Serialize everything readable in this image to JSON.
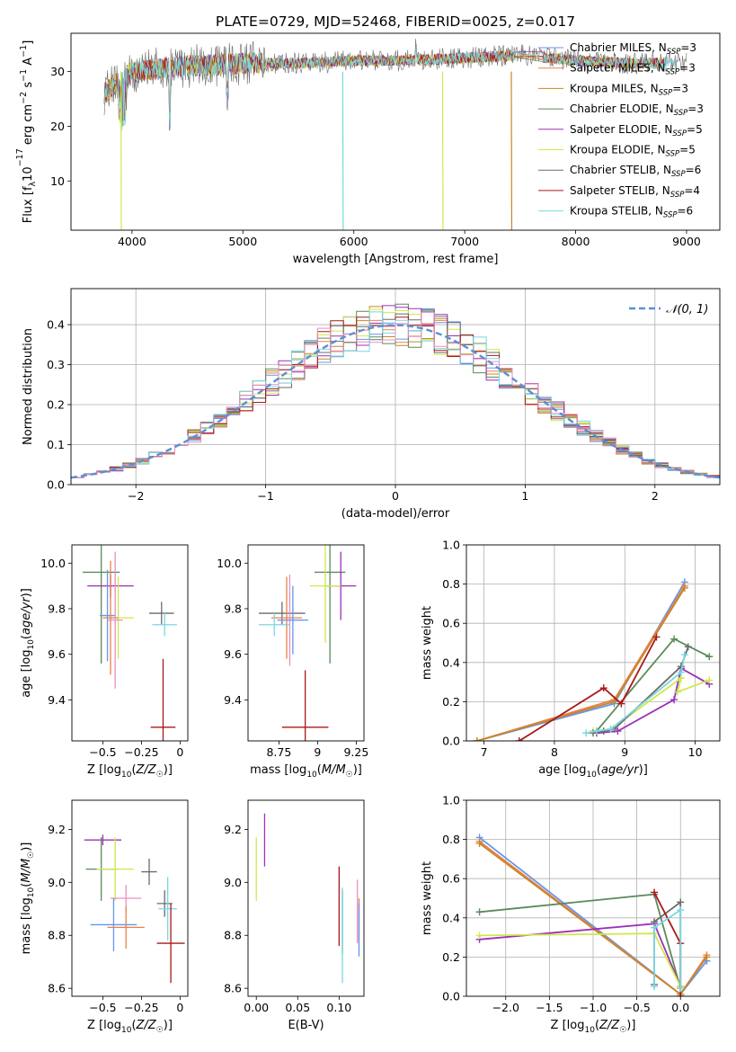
{
  "title": "PLATE=0729, MJD=52468, FIBERID=0025, z=0.017",
  "colors": {
    "chabrier_miles": "#6495ed",
    "salpeter_miles": "#e8824a",
    "kroupa_miles": "#c9862a",
    "chabrier_elodie": "#5c8a5c",
    "salpeter_elodie": "#9b30b8",
    "kroupa_elodie": "#cfe84a",
    "chabrier_stelib": "#6b6b6b",
    "salpeter_stelib": "#a81818",
    "kroupa_stelib": "#79d7e3",
    "pink": "#e98fc0",
    "gaussian": "#5b8fd4"
  },
  "legend": [
    {
      "base": "Chabrier MILES, N",
      "sub": "SSP",
      "tail": "=3",
      "color": "#6495ed"
    },
    {
      "base": "Salpeter MILES, N",
      "sub": "SSP",
      "tail": "=3",
      "color": "#e8824a"
    },
    {
      "base": "Kroupa MILES, N",
      "sub": "SSP",
      "tail": "=3",
      "color": "#c9862a"
    },
    {
      "base": "Chabrier ELODIE, N",
      "sub": "SSP",
      "tail": "=3",
      "color": "#5c8a5c"
    },
    {
      "base": "Salpeter ELODIE, N",
      "sub": "SSP",
      "tail": "=5",
      "color": "#9b30b8"
    },
    {
      "base": "Kroupa ELODIE, N",
      "sub": "SSP",
      "tail": "=5",
      "color": "#cfe84a"
    },
    {
      "base": "Chabrier STELIB, N",
      "sub": "SSP",
      "tail": "=6",
      "color": "#6b6b6b"
    },
    {
      "base": "Salpeter STELIB, N",
      "sub": "SSP",
      "tail": "=4",
      "color": "#a81818"
    },
    {
      "base": "Kroupa STELIB, N",
      "sub": "SSP",
      "tail": "=6",
      "color": "#79d7e3"
    }
  ],
  "chart_data": [
    {
      "type": "line",
      "name": "spectrum",
      "xlabel": "wavelength [Angstrom, rest frame]",
      "ylabel": "Flux [f_λ 10^-17 erg cm^-2 s^-1 A^-1]",
      "xlim": [
        3450,
        9300
      ],
      "ylim": [
        1,
        37
      ],
      "xticks": [
        4000,
        5000,
        6000,
        7000,
        8000,
        9000
      ],
      "yticks": [
        10,
        20,
        30
      ],
      "grid": false,
      "legend_position": "top-right",
      "envelope": {
        "x": [
          3750,
          4000,
          4500,
          5000,
          5500,
          6000,
          6500,
          7000,
          7500,
          8000,
          8500,
          9000
        ],
        "y": [
          26,
          30,
          31,
          31.5,
          31.5,
          32,
          32,
          32.5,
          33,
          32,
          31.5,
          31.5
        ]
      },
      "dropouts": [
        {
          "x": 3900,
          "y": 1,
          "series": "Kroupa ELODIE"
        },
        {
          "x": 5900,
          "y": 1,
          "series": "Kroupa STELIB"
        },
        {
          "x": 6800,
          "y": 1,
          "series": "Kroupa ELODIE"
        },
        {
          "x": 7420,
          "y": 1,
          "series": "Kroupa MILES"
        }
      ]
    },
    {
      "type": "line",
      "name": "residual-histogram",
      "xlabel": "(data-model)/error",
      "ylabel": "Normed distribution",
      "xlim": [
        -2.5,
        2.5
      ],
      "ylim": [
        0,
        0.49
      ],
      "xticks": [
        -2,
        -1,
        0,
        1,
        2
      ],
      "yticks": [
        0.0,
        0.1,
        0.2,
        0.3,
        0.4
      ],
      "grid": true,
      "legend": [
        {
          "label": "N(0,1)",
          "style": "dashed"
        }
      ],
      "legend_position": "top-right",
      "bins": {
        "start": -2.5,
        "width": 0.1,
        "count": 50
      },
      "series_amplitude": 0.4
    },
    {
      "type": "scatter",
      "name": "age-vs-Z",
      "xlabel": "Z [log10(Z/Z☉)]",
      "ylabel": "age [log10(age/yr)]",
      "xlim": [
        -0.7,
        0.05
      ],
      "ylim": [
        9.22,
        10.08
      ],
      "xticks": [
        -0.5,
        -0.25,
        0.0
      ],
      "yticks": [
        9.4,
        9.6,
        9.8,
        10.0
      ],
      "points": [
        {
          "x": -0.51,
          "y": 9.96,
          "dx": 0.12,
          "dy": 0.4,
          "color": "#5c8a5c"
        },
        {
          "x": -0.45,
          "y": 9.9,
          "dx": 0.15,
          "dy": 0.05,
          "color": "#9b30b8"
        },
        {
          "x": -0.47,
          "y": 9.77,
          "dx": 0.05,
          "dy": 0.2,
          "color": "#6495ed"
        },
        {
          "x": -0.4,
          "y": 9.76,
          "dx": 0.1,
          "dy": 0.18,
          "color": "#cfe84a"
        },
        {
          "x": -0.45,
          "y": 9.76,
          "dx": 0.05,
          "dy": 0.25,
          "color": "#e8824a"
        },
        {
          "x": -0.42,
          "y": 9.75,
          "dx": 0.05,
          "dy": 0.3,
          "color": "#e98fc0"
        },
        {
          "x": -0.12,
          "y": 9.78,
          "dx": 0.08,
          "dy": 0.05,
          "color": "#6b6b6b"
        },
        {
          "x": -0.1,
          "y": 9.73,
          "dx": 0.08,
          "dy": 0.05,
          "color": "#79d7e3"
        },
        {
          "x": -0.11,
          "y": 9.28,
          "dx": 0.08,
          "dy": 0.3,
          "color": "#a81818"
        }
      ]
    },
    {
      "type": "scatter",
      "name": "age-vs-mass",
      "xlabel": "mass [log10(M/M☉)]",
      "ylabel": "",
      "xlim": [
        8.55,
        9.3
      ],
      "ylim": [
        9.22,
        10.08
      ],
      "xticks": [
        8.75,
        9.0,
        9.25
      ],
      "yticks": [
        9.4,
        9.6,
        9.8,
        10.0
      ],
      "points": [
        {
          "x": 9.08,
          "y": 9.96,
          "dx": 0.1,
          "dy": 0.4,
          "color": "#5c8a5c"
        },
        {
          "x": 9.15,
          "y": 9.9,
          "dx": 0.1,
          "dy": 0.15,
          "color": "#9b30b8"
        },
        {
          "x": 9.05,
          "y": 9.9,
          "dx": 0.1,
          "dy": 0.25,
          "color": "#cfe84a"
        },
        {
          "x": 8.77,
          "y": 9.78,
          "dx": 0.15,
          "dy": 0.05,
          "color": "#6b6b6b"
        },
        {
          "x": 8.8,
          "y": 9.76,
          "dx": 0.1,
          "dy": 0.18,
          "color": "#e8824a"
        },
        {
          "x": 8.82,
          "y": 9.75,
          "dx": 0.08,
          "dy": 0.2,
          "color": "#e98fc0"
        },
        {
          "x": 8.84,
          "y": 9.75,
          "dx": 0.1,
          "dy": 0.15,
          "color": "#6495ed"
        },
        {
          "x": 8.72,
          "y": 9.73,
          "dx": 0.1,
          "dy": 0.05,
          "color": "#79d7e3"
        },
        {
          "x": 8.92,
          "y": 9.28,
          "dx": 0.15,
          "dy": 0.25,
          "color": "#a81818"
        }
      ]
    },
    {
      "type": "line",
      "name": "mass-weight-vs-age",
      "xlabel": "age [log10(age/yr)]",
      "ylabel": "mass weight",
      "xlim": [
        6.75,
        10.35
      ],
      "ylim": [
        0,
        1
      ],
      "xticks": [
        7,
        8,
        9,
        10
      ],
      "yticks": [
        0.0,
        0.2,
        0.4,
        0.6,
        0.8,
        1.0
      ],
      "grid": true,
      "series": [
        {
          "x": [
            6.9,
            8.85,
            9.85
          ],
          "y": [
            0.0,
            0.19,
            0.81
          ],
          "color": "#6495ed"
        },
        {
          "x": [
            6.9,
            8.85,
            9.85
          ],
          "y": [
            0.0,
            0.21,
            0.79
          ],
          "color": "#e8824a"
        },
        {
          "x": [
            6.9,
            8.85,
            9.85
          ],
          "y": [
            0.0,
            0.2,
            0.78
          ],
          "color": "#c9862a"
        },
        {
          "x": [
            8.6,
            9.7,
            10.2
          ],
          "y": [
            0.05,
            0.52,
            0.43
          ],
          "color": "#5c8a5c"
        },
        {
          "x": [
            8.6,
            8.9,
            9.7,
            9.8,
            10.2
          ],
          "y": [
            0.04,
            0.05,
            0.21,
            0.37,
            0.29
          ],
          "color": "#9b30b8"
        },
        {
          "x": [
            8.55,
            8.8,
            9.8,
            9.75,
            10.2
          ],
          "y": [
            0.05,
            0.06,
            0.32,
            0.25,
            0.31
          ],
          "color": "#cfe84a"
        },
        {
          "x": [
            8.55,
            8.7,
            8.85,
            9.8,
            9.9
          ],
          "y": [
            0.04,
            0.05,
            0.06,
            0.38,
            0.48
          ],
          "color": "#6b6b6b"
        },
        {
          "x": [
            7.5,
            8.7,
            8.95,
            9.45
          ],
          "y": [
            0.0,
            0.27,
            0.19,
            0.53
          ],
          "color": "#a81818"
        },
        {
          "x": [
            8.45,
            8.6,
            8.8,
            9.8,
            9.85
          ],
          "y": [
            0.04,
            0.05,
            0.06,
            0.35,
            0.44
          ],
          "color": "#79d7e3"
        }
      ]
    },
    {
      "type": "scatter",
      "name": "mass-vs-Z",
      "xlabel": "Z [log10(Z/Z☉)]",
      "ylabel": "mass [log10(M/M☉)]",
      "xlim": [
        -0.7,
        0.05
      ],
      "ylim": [
        8.57,
        9.31
      ],
      "xticks": [
        -0.5,
        -0.25,
        0.0
      ],
      "yticks": [
        8.6,
        8.8,
        9.0,
        9.2
      ],
      "points": [
        {
          "x": -0.5,
          "y": 9.16,
          "dx": 0.12,
          "dy": 0.02,
          "color": "#9b30b8"
        },
        {
          "x": -0.51,
          "y": 9.05,
          "dx": 0.1,
          "dy": 0.12,
          "color": "#5c8a5c"
        },
        {
          "x": -0.42,
          "y": 9.05,
          "dx": 0.12,
          "dy": 0.12,
          "color": "#cfe84a"
        },
        {
          "x": -0.35,
          "y": 8.94,
          "dx": 0.1,
          "dy": 0.05,
          "color": "#e98fc0"
        },
        {
          "x": -0.2,
          "y": 9.04,
          "dx": 0.05,
          "dy": 0.05,
          "color": "#6b6b6b"
        },
        {
          "x": -0.43,
          "y": 8.84,
          "dx": 0.15,
          "dy": 0.1,
          "color": "#6495ed"
        },
        {
          "x": -0.35,
          "y": 8.83,
          "dx": 0.12,
          "dy": 0.08,
          "color": "#e8824a"
        },
        {
          "x": -0.1,
          "y": 8.92,
          "dx": 0.05,
          "dy": 0.05,
          "color": "#6b6b6b"
        },
        {
          "x": -0.08,
          "y": 8.9,
          "dx": 0.06,
          "dy": 0.12,
          "color": "#79d7e3"
        },
        {
          "x": -0.06,
          "y": 8.77,
          "dx": 0.09,
          "dy": 0.15,
          "color": "#a81818"
        }
      ]
    },
    {
      "type": "scatter",
      "name": "mass-vs-EBV",
      "xlabel": "E(B-V)",
      "ylabel": "",
      "xlim": [
        -0.01,
        0.13
      ],
      "ylim": [
        8.57,
        9.31
      ],
      "xticks": [
        0.0,
        0.05,
        0.1
      ],
      "yticks": [
        8.6,
        8.8,
        9.0,
        9.2
      ],
      "points": [
        {
          "x": 0.01,
          "y": 9.16,
          "dy": 0.1,
          "color": "#9b30b8"
        },
        {
          "x": 0.0,
          "y": 9.05,
          "dy": 0.12,
          "color": "#cfe84a"
        },
        {
          "x": 0.1,
          "y": 8.91,
          "dy": 0.15,
          "color": "#a81818"
        },
        {
          "x": 0.104,
          "y": 8.85,
          "dy": 0.12,
          "color": "#5c8a5c"
        },
        {
          "x": 0.104,
          "y": 8.8,
          "dy": 0.18,
          "color": "#79d7e3"
        },
        {
          "x": 0.122,
          "y": 8.89,
          "dy": 0.12,
          "color": "#e98fc0"
        },
        {
          "x": 0.124,
          "y": 8.86,
          "dy": 0.08,
          "color": "#e8824a"
        },
        {
          "x": 0.124,
          "y": 8.82,
          "dy": 0.1,
          "color": "#6495ed"
        }
      ]
    },
    {
      "type": "line",
      "name": "mass-weight-vs-Z",
      "xlabel": "Z [log10(Z/Z☉)]",
      "ylabel": "mass weight",
      "xlim": [
        -2.45,
        0.45
      ],
      "ylim": [
        0,
        1
      ],
      "xticks": [
        -2.0,
        -1.5,
        -1.0,
        -0.5,
        0.0
      ],
      "yticks": [
        0.0,
        0.2,
        0.4,
        0.6,
        0.8,
        1.0
      ],
      "grid": true,
      "series": [
        {
          "x": [
            -2.3,
            0.0,
            0.3
          ],
          "y": [
            0.81,
            0.01,
            0.18
          ],
          "color": "#6495ed"
        },
        {
          "x": [
            -2.3,
            0.0,
            0.3
          ],
          "y": [
            0.79,
            0.01,
            0.21
          ],
          "color": "#e8824a"
        },
        {
          "x": [
            -2.3,
            0.0,
            0.3
          ],
          "y": [
            0.78,
            0.01,
            0.2
          ],
          "color": "#c9862a"
        },
        {
          "x": [
            -2.3,
            -0.3,
            0.0
          ],
          "y": [
            0.43,
            0.52,
            0.04
          ],
          "color": "#5c8a5c"
        },
        {
          "x": [
            -2.3,
            -0.3,
            0.0
          ],
          "y": [
            0.29,
            0.37,
            0.05
          ],
          "color": "#9b30b8"
        },
        {
          "x": [
            -2.3,
            -0.3,
            0.0
          ],
          "y": [
            0.31,
            0.32,
            0.05
          ],
          "color": "#cfe84a"
        },
        {
          "x": [
            -0.3,
            -0.3,
            0.0,
            0.0
          ],
          "y": [
            0.06,
            0.38,
            0.48,
            0.04
          ],
          "color": "#6b6b6b"
        },
        {
          "x": [
            -0.3,
            0.0,
            0.0
          ],
          "y": [
            0.53,
            0.27,
            0.0
          ],
          "color": "#a81818"
        },
        {
          "x": [
            -0.3,
            -0.3,
            0.0,
            0.0
          ],
          "y": [
            0.05,
            0.35,
            0.44,
            0.04
          ],
          "color": "#79d7e3"
        }
      ]
    }
  ]
}
